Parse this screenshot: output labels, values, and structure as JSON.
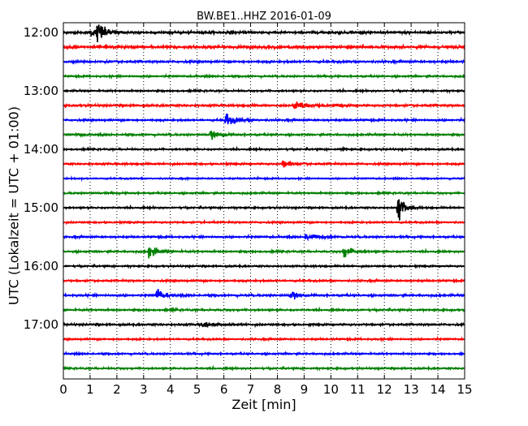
{
  "chart_data": {
    "type": "line",
    "title": "BW.BE1..HHZ 2016-01-09",
    "xlabel": "Zeit  [min]",
    "ylabel": "UTC (Lokalzeit = UTC + 01:00)",
    "xlim": [
      0,
      15
    ],
    "x_ticks": [
      "0",
      "1",
      "2",
      "3",
      "4",
      "5",
      "6",
      "7",
      "8",
      "9",
      "10",
      "11",
      "12",
      "13",
      "14",
      "15"
    ],
    "y_ticks": [
      {
        "label": "12:00",
        "row": 0
      },
      {
        "label": "13:00",
        "row": 4
      },
      {
        "label": "14:00",
        "row": 8
      },
      {
        "label": "15:00",
        "row": 12
      },
      {
        "label": "16:00",
        "row": 16
      },
      {
        "label": "17:00",
        "row": 20
      }
    ],
    "row_interval_min": 15,
    "start_time": "12:00",
    "grid": true,
    "trace_colors": [
      "#000000",
      "#ff0000",
      "#0000ff",
      "#008000"
    ],
    "rows": [
      {
        "time": "12:00",
        "noise": 0.18,
        "events": [
          {
            "t": 1.25,
            "amp": 2.6,
            "dur": 0.7
          },
          {
            "t": 1.05,
            "amp": 0.8,
            "dur": 0.4
          }
        ]
      },
      {
        "time": "12:15",
        "noise": 0.2,
        "events": [
          {
            "t": 1.6,
            "amp": 0.5,
            "dur": 0.2
          }
        ]
      },
      {
        "time": "12:30",
        "noise": 0.15,
        "events": []
      },
      {
        "time": "12:45",
        "noise": 0.12,
        "events": []
      },
      {
        "time": "13:00",
        "noise": 0.12,
        "events": []
      },
      {
        "time": "13:15",
        "noise": 0.15,
        "events": [
          {
            "t": 8.6,
            "amp": 0.8,
            "dur": 1.4
          }
        ]
      },
      {
        "time": "13:30",
        "noise": 0.13,
        "events": [
          {
            "t": 6.05,
            "amp": 1.2,
            "dur": 0.9
          }
        ]
      },
      {
        "time": "13:45",
        "noise": 0.13,
        "events": [
          {
            "t": 5.5,
            "amp": 0.7,
            "dur": 0.8
          },
          {
            "t": 0.5,
            "amp": 0.25,
            "dur": 0.5
          }
        ]
      },
      {
        "time": "14:00",
        "noise": 0.12,
        "events": [
          {
            "t": 10.45,
            "amp": 0.3,
            "dur": 0.2
          }
        ]
      },
      {
        "time": "14:15",
        "noise": 0.13,
        "events": [
          {
            "t": 8.2,
            "amp": 0.9,
            "dur": 0.7
          }
        ]
      },
      {
        "time": "14:30",
        "noise": 0.1,
        "events": []
      },
      {
        "time": "14:45",
        "noise": 0.12,
        "events": []
      },
      {
        "time": "15:00",
        "noise": 0.12,
        "events": [
          {
            "t": 12.5,
            "amp": 2.5,
            "dur": 0.6
          }
        ]
      },
      {
        "time": "15:15",
        "noise": 0.12,
        "events": []
      },
      {
        "time": "15:30",
        "noise": 0.13,
        "events": [
          {
            "t": 9.05,
            "amp": 0.7,
            "dur": 1.1
          }
        ]
      },
      {
        "time": "15:45",
        "noise": 0.13,
        "events": [
          {
            "t": 3.2,
            "amp": 1.5,
            "dur": 0.7
          },
          {
            "t": 10.45,
            "amp": 1.1,
            "dur": 0.8
          }
        ]
      },
      {
        "time": "16:00",
        "noise": 0.12,
        "events": []
      },
      {
        "time": "16:15",
        "noise": 0.13,
        "events": []
      },
      {
        "time": "16:30",
        "noise": 0.14,
        "events": [
          {
            "t": 3.5,
            "amp": 1.5,
            "dur": 0.6
          },
          {
            "t": 8.5,
            "amp": 0.8,
            "dur": 0.6
          }
        ]
      },
      {
        "time": "16:45",
        "noise": 0.13,
        "events": [
          {
            "t": 4.1,
            "amp": 0.4,
            "dur": 0.2
          }
        ]
      },
      {
        "time": "17:00",
        "noise": 0.14,
        "events": [
          {
            "t": 5.2,
            "amp": 0.5,
            "dur": 1.2
          }
        ]
      },
      {
        "time": "17:15",
        "noise": 0.12,
        "events": []
      },
      {
        "time": "17:30",
        "noise": 0.12,
        "events": []
      },
      {
        "time": "17:45",
        "noise": 0.12,
        "events": []
      }
    ]
  }
}
